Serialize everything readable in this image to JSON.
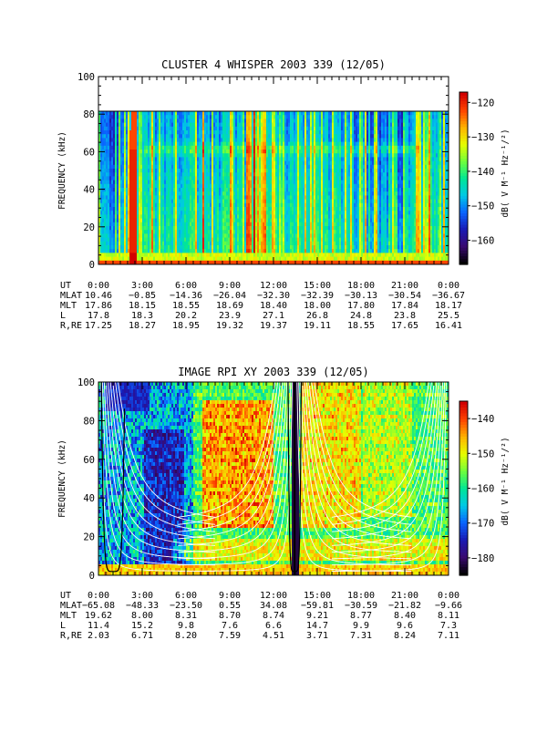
{
  "chart_data": [
    {
      "type": "heatmap",
      "title": "CLUSTER 4 WHISPER 2003 339 (12/05)",
      "ylabel": "FREQUENCY (kHz)",
      "ylim": [
        0,
        100
      ],
      "yticks": [
        "0",
        "20",
        "40",
        "60",
        "80",
        "100"
      ],
      "xticks": [
        "0:00",
        "3:00",
        "6:00",
        "9:00",
        "12:00",
        "15:00",
        "18:00",
        "21:00",
        "0:00"
      ],
      "colorbar": {
        "label": "dB( V M⁻¹ Hz⁻¹/²)",
        "range": [
          -167,
          -117
        ],
        "ticks": [
          "-120",
          "-130",
          "-140",
          "-150",
          "-160"
        ],
        "colors": [
          "#000000",
          "#3a0a70",
          "#1a1ab4",
          "#0a64ff",
          "#00c8e6",
          "#00e696",
          "#6eff3c",
          "#e6ff00",
          "#ffb400",
          "#ff4600",
          "#d20000"
        ]
      },
      "data_top_khz": 80,
      "features": [
        "broadband noise below ~5 kHz",
        "intense emission near 2:00-2:30 UT up to 80 kHz",
        "plasma line near 55-65 kHz",
        "vertical broadband bursts across the day"
      ],
      "ephemeris": {
        "labels": [
          "UT",
          "MLAT",
          "MLT",
          "L",
          "R,RE"
        ],
        "rows": [
          [
            "0:00",
            "3:00",
            "6:00",
            "9:00",
            "12:00",
            "15:00",
            "18:00",
            "21:00",
            "0:00"
          ],
          [
            "10.46",
            "-0.85",
            "-14.36",
            "-26.04",
            "-32.30",
            "-32.39",
            "-30.13",
            "-30.54",
            "-36.67"
          ],
          [
            "17.86",
            "18.15",
            "18.55",
            "18.69",
            "18.40",
            "18.00",
            "17.80",
            "17.84",
            "18.17"
          ],
          [
            "17.8",
            "18.3",
            "20.2",
            "23.9",
            "27.1",
            "26.8",
            "24.8",
            "23.8",
            "25.5"
          ],
          [
            "17.25",
            "18.27",
            "18.95",
            "19.32",
            "19.37",
            "19.11",
            "18.55",
            "17.65",
            "16.41"
          ]
        ]
      }
    },
    {
      "type": "heatmap",
      "title": "IMAGE RPI XY 2003 339 (12/05)",
      "ylabel": "FREQUENCY (kHz)",
      "ylim": [
        0,
        100
      ],
      "yticks": [
        "0",
        "20",
        "40",
        "60",
        "80",
        "100"
      ],
      "xticks": [
        "0:00",
        "3:00",
        "6:00",
        "9:00",
        "12:00",
        "15:00",
        "18:00",
        "21:00",
        "0:00"
      ],
      "colorbar": {
        "label": "dB( V M⁻¹ Hz⁻¹/²)",
        "range": [
          -185,
          -135
        ],
        "ticks": [
          "-140",
          "-150",
          "-160",
          "-170",
          "-180"
        ],
        "colors": [
          "#000000",
          "#3a0a70",
          "#1a1ab4",
          "#0a64ff",
          "#00c8e6",
          "#00e696",
          "#6eff3c",
          "#e6ff00",
          "#ffb400",
          "#ff4600",
          "#d20000"
        ]
      },
      "data_top_khz": 100,
      "features": [
        "white plasma frequency curves near perigees ~0:00, ~13:30, 0:00",
        "dark low-intensity regions 0:30-6:30 UT",
        "orange/red broadband emission 7:00-21:00 UT"
      ],
      "ephemeris": {
        "labels": [
          "UT",
          "MLAT",
          "MLT",
          "L",
          "R,RE"
        ],
        "rows": [
          [
            "0:00",
            "3:00",
            "6:00",
            "9:00",
            "12:00",
            "15:00",
            "18:00",
            "21:00",
            "0:00"
          ],
          [
            "-65.08",
            "-48.33",
            "-23.50",
            "0.55",
            "34.08",
            "-59.81",
            "-30.59",
            "-21.82",
            "-9.66"
          ],
          [
            "19.62",
            "8.00",
            "8.31",
            "8.70",
            "8.74",
            "9.21",
            "8.77",
            "8.40",
            "8.11"
          ],
          [
            "11.4",
            "15.2",
            "9.8",
            "7.6",
            "6.6",
            "14.7",
            "9.9",
            "9.6",
            "7.3"
          ],
          [
            "2.03",
            "6.71",
            "8.20",
            "7.59",
            "4.51",
            "3.71",
            "7.31",
            "8.24",
            "7.11"
          ]
        ]
      }
    }
  ]
}
